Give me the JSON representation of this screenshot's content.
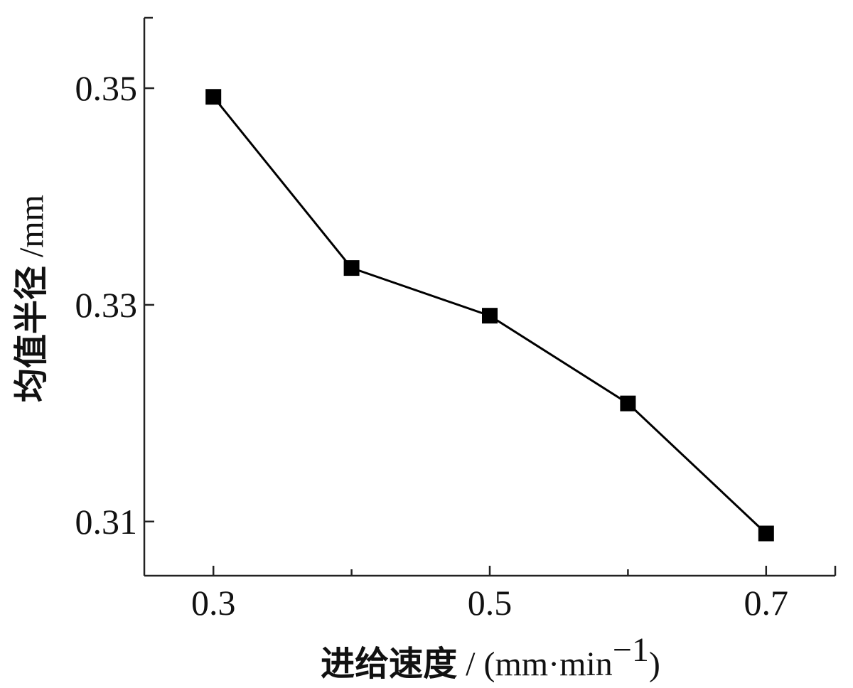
{
  "chart_data": {
    "type": "line",
    "xlabel_main": "进给速度",
    "xlabel_unit_open": " / (mm·min",
    "xlabel_unit_sup": "−1",
    "xlabel_unit_close": ")",
    "ylabel_main": "均值半径",
    "ylabel_unit": " /mm",
    "xlim": [
      0.25,
      0.75
    ],
    "ylim": [
      0.305,
      0.3565
    ],
    "x_ticks": [
      0.3,
      0.5,
      0.7
    ],
    "x_tick_labels": [
      "0.3",
      "0.5",
      "0.7"
    ],
    "x_minor_ticks": [
      0.4,
      0.6
    ],
    "y_ticks": [
      0.31,
      0.33,
      0.35
    ],
    "y_tick_labels": [
      "0.31",
      "0.33",
      "0.35"
    ],
    "grid": false,
    "series": [
      {
        "marker": "square",
        "color": "#000000",
        "x": [
          0.3,
          0.4,
          0.5,
          0.6,
          0.7
        ],
        "y": [
          0.3492,
          0.3334,
          0.329,
          0.3209,
          0.3089
        ]
      }
    ]
  }
}
